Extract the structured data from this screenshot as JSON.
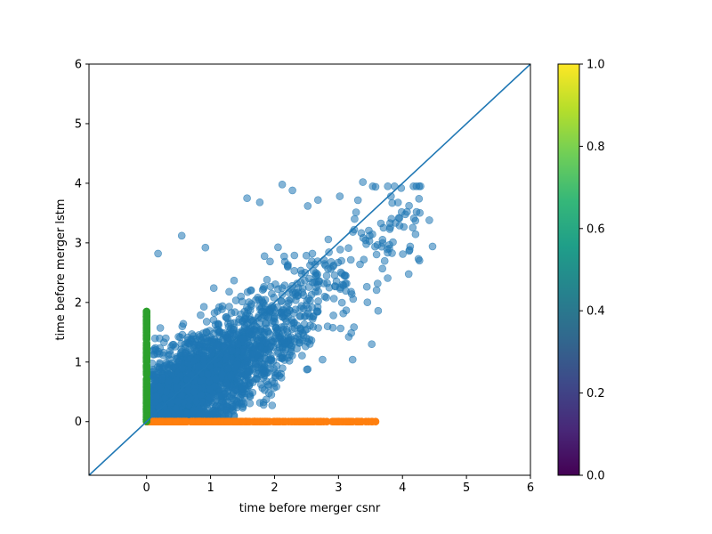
{
  "chart_data": {
    "type": "scatter",
    "xlabel": "time before merger csnr",
    "ylabel": "time before merger lstm",
    "xlim": [
      -0.9,
      6
    ],
    "ylim": [
      -0.9,
      6
    ],
    "x_ticks": [
      0,
      1,
      2,
      3,
      4,
      5,
      6
    ],
    "y_ticks": [
      0,
      1,
      2,
      3,
      4,
      5,
      6
    ],
    "grid": false,
    "legend": "none",
    "reference_line": {
      "type": "y=x",
      "color": "#1f77b4"
    },
    "series": [
      {
        "color": "#1f77b4",
        "alpha": 0.55,
        "description_points": "dense cloud of several thousand points concentrated around the diagonal",
        "sample_points": [
          [
            0.18,
            2.82
          ],
          [
            0.55,
            3.12
          ],
          [
            0.92,
            2.92
          ],
          [
            1.57,
            3.75
          ],
          [
            1.77,
            3.68
          ],
          [
            2.12,
            3.98
          ],
          [
            2.28,
            3.88
          ],
          [
            2.52,
            3.62
          ],
          [
            2.68,
            3.72
          ],
          [
            3.02,
            3.78
          ],
          [
            3.38,
            4.02
          ],
          [
            3.58,
            3.94
          ],
          [
            3.82,
            3.78
          ],
          [
            3.98,
            3.92
          ],
          [
            4.07,
            3.52
          ],
          [
            4.22,
            3.52
          ],
          [
            4.42,
            3.38
          ],
          [
            4.47,
            2.94
          ],
          [
            4.12,
            2.94
          ],
          [
            3.62,
            1.86
          ],
          [
            3.52,
            1.3
          ],
          [
            3.22,
            1.04
          ],
          [
            2.75,
            1.04
          ],
          [
            2.52,
            0.88
          ],
          [
            1.95,
            0.45
          ],
          [
            1.62,
            0.42
          ],
          [
            1.83,
            0.28
          ]
        ]
      },
      {
        "color": "#ff7f0e",
        "description": "points along y = 0 for x from 0 to about 3.55",
        "x_range": [
          0.0,
          3.55
        ],
        "y": 0
      },
      {
        "color": "#2ca02c",
        "description": "points along x = 0 for y from 0 to about 1.85",
        "y_range": [
          0.0,
          1.85
        ],
        "x": 0
      }
    ],
    "colorbar": {
      "colormap": "viridis",
      "range": [
        0.0,
        1.0
      ],
      "ticks": [
        "0.0",
        "0.2",
        "0.4",
        "0.6",
        "0.8",
        "1.0"
      ],
      "colors": [
        "#440154",
        "#482878",
        "#3e4989",
        "#31688e",
        "#26828e",
        "#1f9e89",
        "#35b779",
        "#6ece58",
        "#b5de2b",
        "#fde725"
      ]
    }
  }
}
